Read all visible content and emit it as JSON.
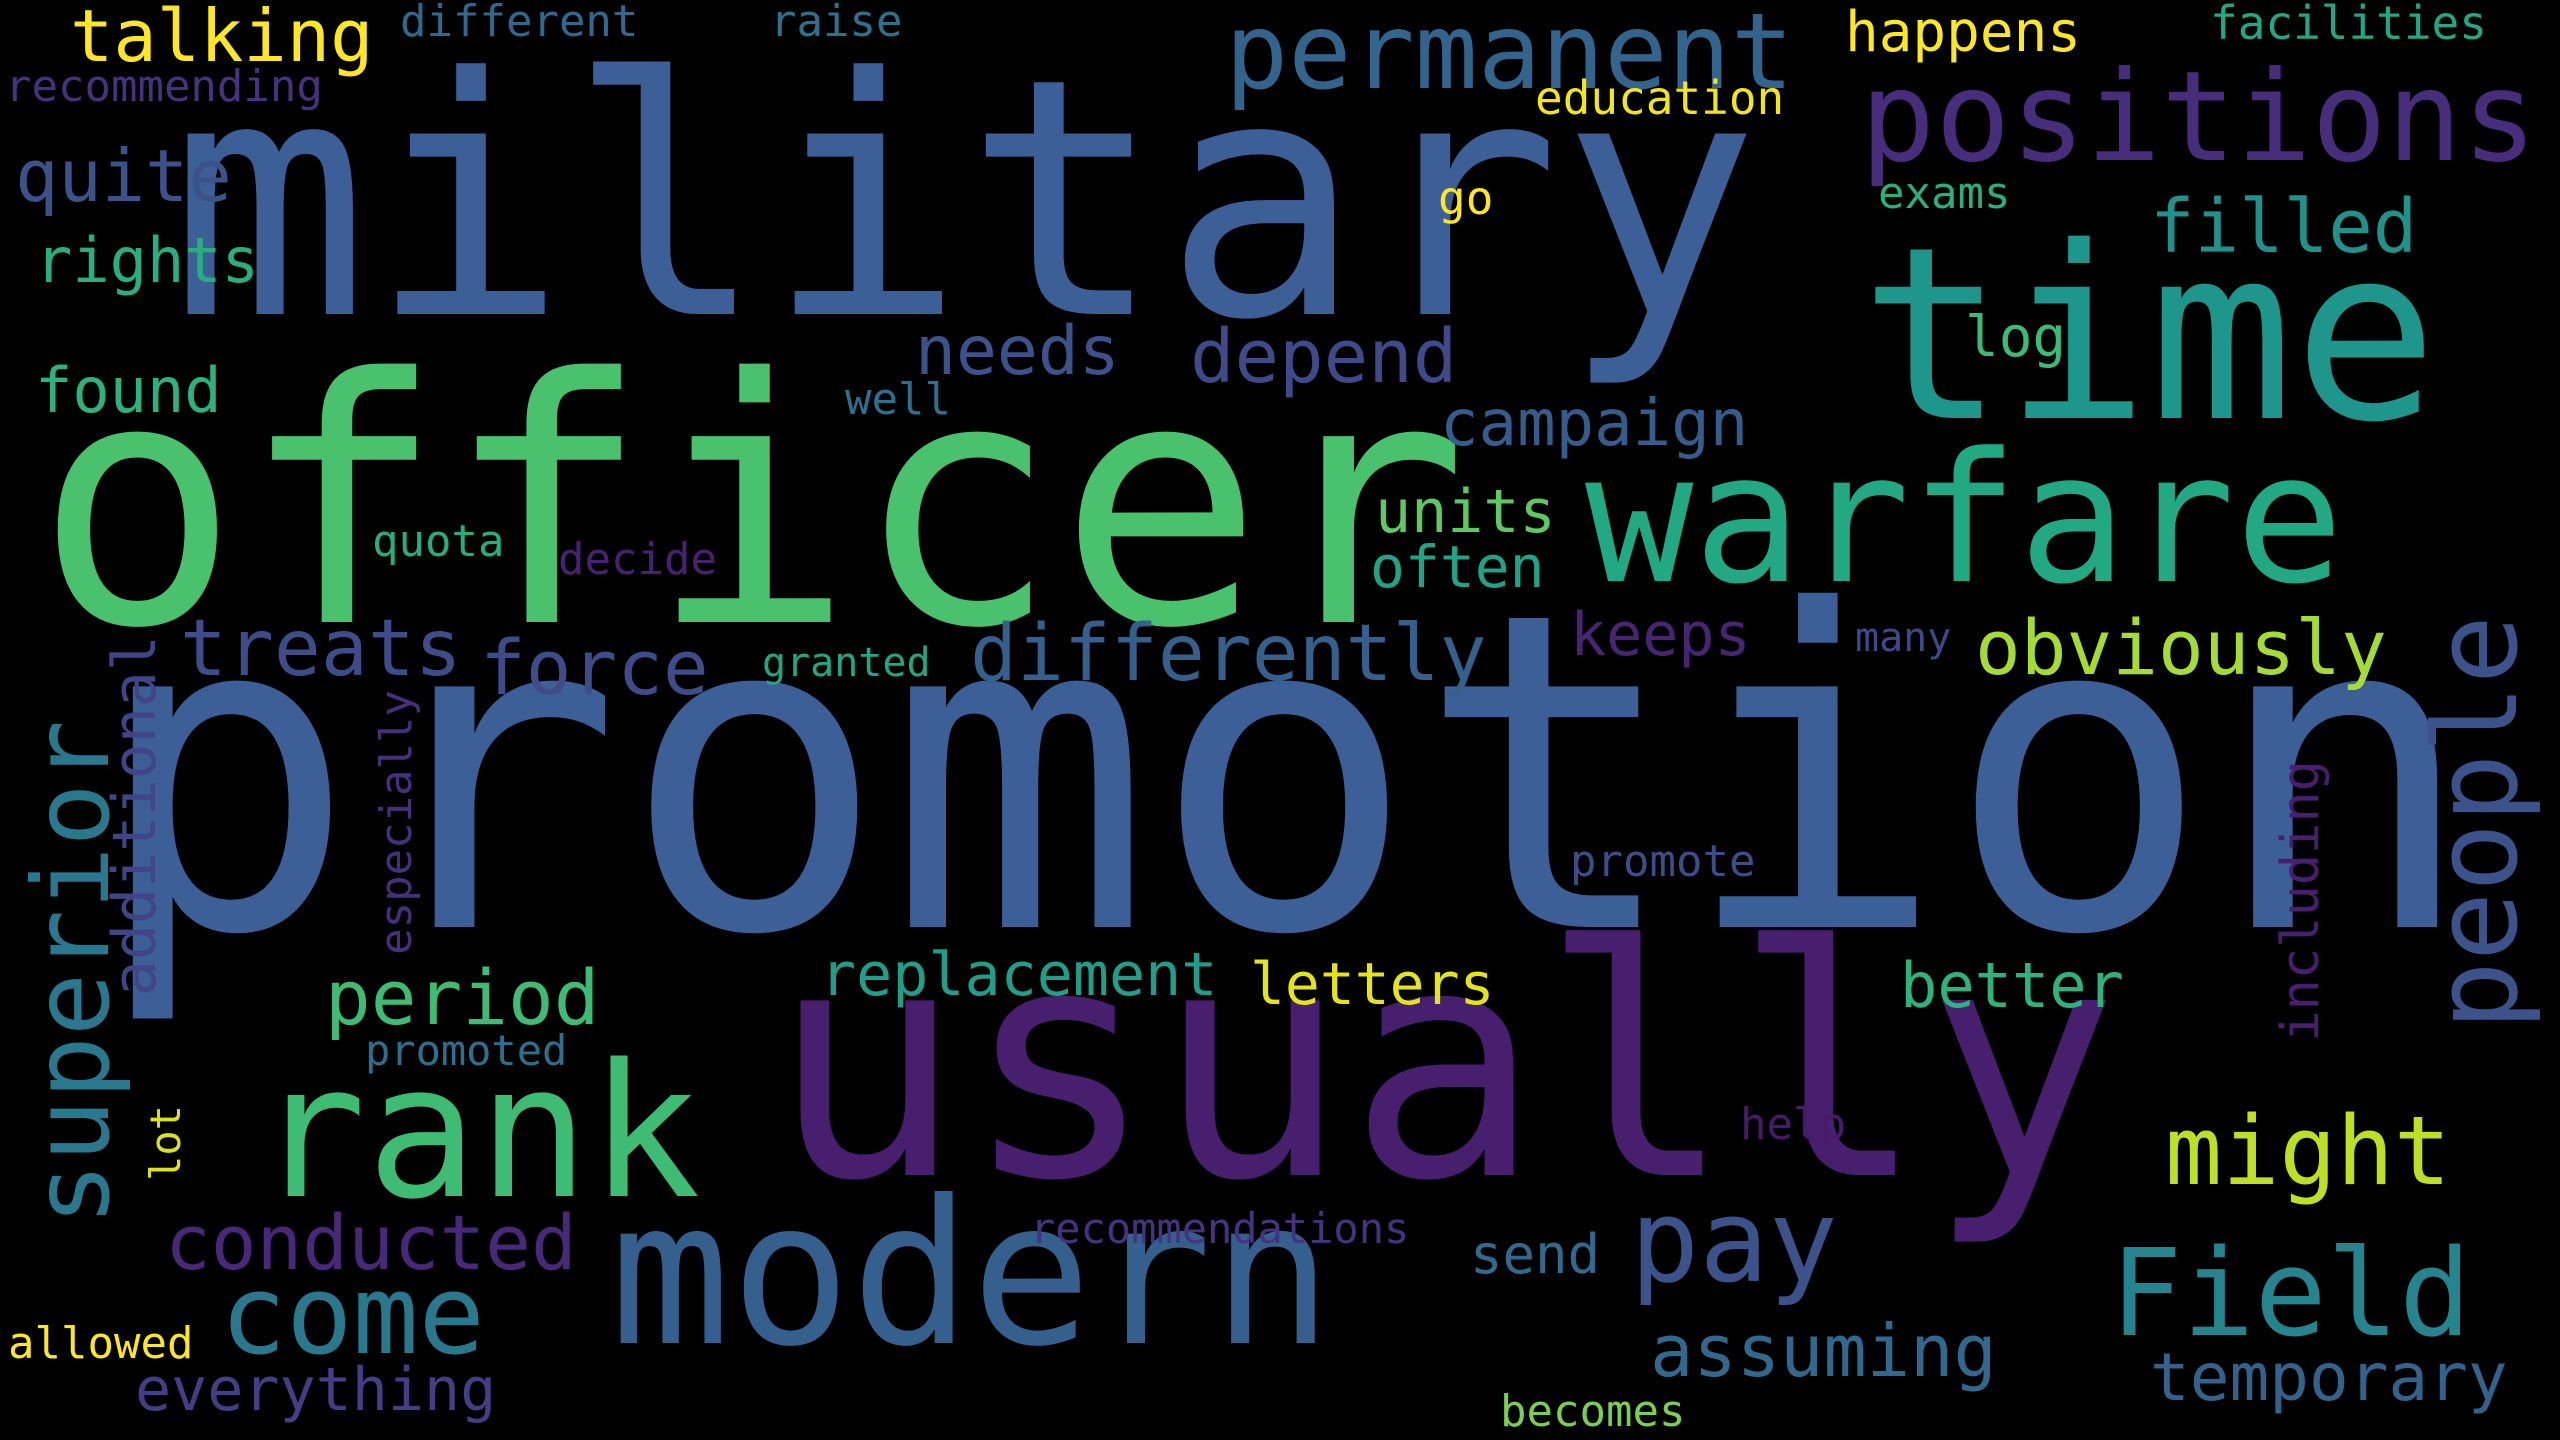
{
  "words": [
    {
      "text": "promotion",
      "color": "#3b5f96"
    },
    {
      "text": "officer",
      "color": "#4ac16d"
    },
    {
      "text": "military",
      "color": "#3b5f96"
    },
    {
      "text": "usually",
      "color": "#471f6e"
    },
    {
      "text": "time",
      "color": "#1f968b"
    },
    {
      "text": "warfare",
      "color": "#23a884"
    },
    {
      "text": "rank",
      "color": "#3fbc73"
    },
    {
      "text": "modern",
      "color": "#355f8d"
    },
    {
      "text": "positions",
      "color": "#472d7b"
    },
    {
      "text": "permanent",
      "color": "#32648e"
    },
    {
      "text": "Field",
      "color": "#25848e"
    },
    {
      "text": "people",
      "color": "#3b528b"
    },
    {
      "text": "superior",
      "color": "#2a788e"
    },
    {
      "text": "come",
      "color": "#2a788e"
    },
    {
      "text": "pay",
      "color": "#3b528b"
    },
    {
      "text": "might",
      "color": "#bddf26"
    },
    {
      "text": "differently",
      "color": "#355f8d"
    },
    {
      "text": "obviously",
      "color": "#a5db36"
    },
    {
      "text": "treats",
      "color": "#3e4c8a"
    },
    {
      "text": "force",
      "color": "#3e4c8a"
    },
    {
      "text": "period",
      "color": "#3fbc73"
    },
    {
      "text": "conducted",
      "color": "#482878"
    },
    {
      "text": "assuming",
      "color": "#31688e"
    },
    {
      "text": "temporary",
      "color": "#33638d"
    },
    {
      "text": "filled",
      "color": "#21918c"
    },
    {
      "text": "depend",
      "color": "#3e4a89"
    },
    {
      "text": "needs",
      "color": "#3b528b"
    },
    {
      "text": "campaign",
      "color": "#365c8d"
    },
    {
      "text": "talking",
      "color": "#fde725"
    },
    {
      "text": "quite",
      "color": "#3b528b"
    },
    {
      "text": "rights",
      "color": "#28ae80"
    },
    {
      "text": "found",
      "color": "#2db27d"
    },
    {
      "text": "replacement",
      "color": "#1f9e89"
    },
    {
      "text": "letters",
      "color": "#e5e419"
    },
    {
      "text": "better",
      "color": "#2eb37c"
    },
    {
      "text": "everything",
      "color": "#433e85"
    },
    {
      "text": "units",
      "color": "#5ec962"
    },
    {
      "text": "often",
      "color": "#20a386"
    },
    {
      "text": "keeps",
      "color": "#482475"
    },
    {
      "text": "additional",
      "color": "#414487"
    },
    {
      "text": "including",
      "color": "#481f70"
    },
    {
      "text": "happens",
      "color": "#fde725"
    },
    {
      "text": "facilities",
      "color": "#22a884"
    },
    {
      "text": "education",
      "color": "#f1e51d"
    },
    {
      "text": "different",
      "color": "#31688e"
    },
    {
      "text": "raise",
      "color": "#2c728e"
    },
    {
      "text": "recommending",
      "color": "#46327e"
    },
    {
      "text": "exams",
      "color": "#2ab07f"
    },
    {
      "text": "log",
      "color": "#3bbb75"
    },
    {
      "text": "go",
      "color": "#fde725"
    },
    {
      "text": "well",
      "color": "#2d708e"
    },
    {
      "text": "quota",
      "color": "#26ad81"
    },
    {
      "text": "decide",
      "color": "#482173"
    },
    {
      "text": "granted",
      "color": "#22a785"
    },
    {
      "text": "many",
      "color": "#3e4989"
    },
    {
      "text": "especially",
      "color": "#46307e"
    },
    {
      "text": "promote",
      "color": "#3d4d8a"
    },
    {
      "text": "promoted",
      "color": "#2d708e"
    },
    {
      "text": "lot",
      "color": "#dde318"
    },
    {
      "text": "help",
      "color": "#481a6c"
    },
    {
      "text": "recommendations",
      "color": "#46337f"
    },
    {
      "text": "send",
      "color": "#306a8e"
    },
    {
      "text": "allowed",
      "color": "#fde725"
    },
    {
      "text": "becomes",
      "color": "#7ad151"
    }
  ]
}
